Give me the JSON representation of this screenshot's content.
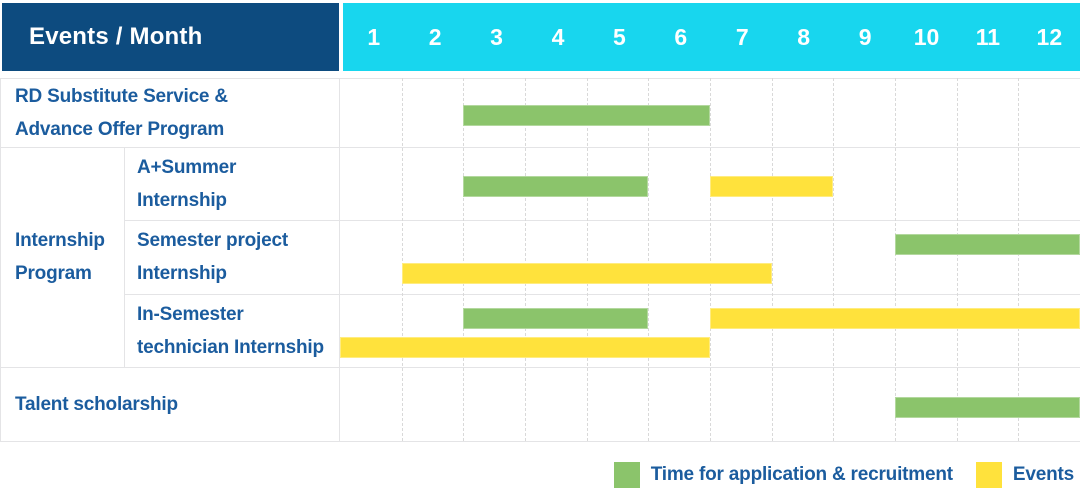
{
  "header": {
    "title": "Events / Month"
  },
  "chart_data": {
    "type": "table",
    "subtype": "gantt-timeline",
    "x_axis_label": "Month",
    "months": [
      "1",
      "2",
      "3",
      "4",
      "5",
      "6",
      "7",
      "8",
      "9",
      "10",
      "11",
      "12"
    ],
    "rows": [
      {
        "label_lines": [
          "RD Substitute Service &",
          "Advance Offer Program"
        ],
        "in_group": false,
        "bars": [
          {
            "series": "Time for application & recruitment",
            "color_key": "green",
            "start_month": 3,
            "end_month": 6,
            "lane": "single"
          }
        ]
      },
      {
        "label_lines": [
          "A+Summer",
          "Internship"
        ],
        "in_group": true,
        "bars": [
          {
            "series": "Time for application & recruitment",
            "color_key": "green",
            "start_month": 3,
            "end_month": 5,
            "lane": "single"
          },
          {
            "series": "Events",
            "color_key": "yellow",
            "start_month": 7,
            "end_month": 8,
            "lane": "single"
          }
        ]
      },
      {
        "label_lines": [
          "Semester project",
          "Internship"
        ],
        "in_group": true,
        "bars": [
          {
            "series": "Time for application & recruitment",
            "color_key": "green",
            "start_month": 10,
            "end_month": 12,
            "lane": "top"
          },
          {
            "series": "Events",
            "color_key": "yellow",
            "start_month": 2,
            "end_month": 7,
            "lane": "bottom"
          }
        ]
      },
      {
        "label_lines": [
          "In-Semester",
          "technician Internship"
        ],
        "in_group": true,
        "bars": [
          {
            "series": "Time for application & recruitment",
            "color_key": "green",
            "start_month": 3,
            "end_month": 5,
            "lane": "top"
          },
          {
            "series": "Events",
            "color_key": "yellow",
            "start_month": 7,
            "end_month": 12,
            "lane": "top"
          },
          {
            "series": "Events",
            "color_key": "yellow",
            "start_month": 1,
            "end_month": 6,
            "lane": "bottom"
          }
        ]
      },
      {
        "label_lines": [
          "Talent scholarship"
        ],
        "in_group": false,
        "bars": [
          {
            "series": "Time for application & recruitment",
            "color_key": "green",
            "start_month": 10,
            "end_month": 12,
            "lane": "single"
          }
        ]
      }
    ],
    "row_group": {
      "label_lines": [
        "Internship",
        "Program"
      ],
      "first_row_index": 1,
      "last_row_index": 3
    },
    "legend": [
      {
        "color_key": "green",
        "label": "Time for application & recruitment"
      },
      {
        "color_key": "yellow",
        "label": "Events"
      }
    ]
  },
  "colors": {
    "green": "#8bc46b",
    "yellow": "#ffe23c",
    "navy": "#0d4b7f",
    "cyan": "#18d6ee",
    "label_blue": "#1b5c9e",
    "border": "#e4e4e6",
    "grid_dash": "#d9d9d9"
  }
}
